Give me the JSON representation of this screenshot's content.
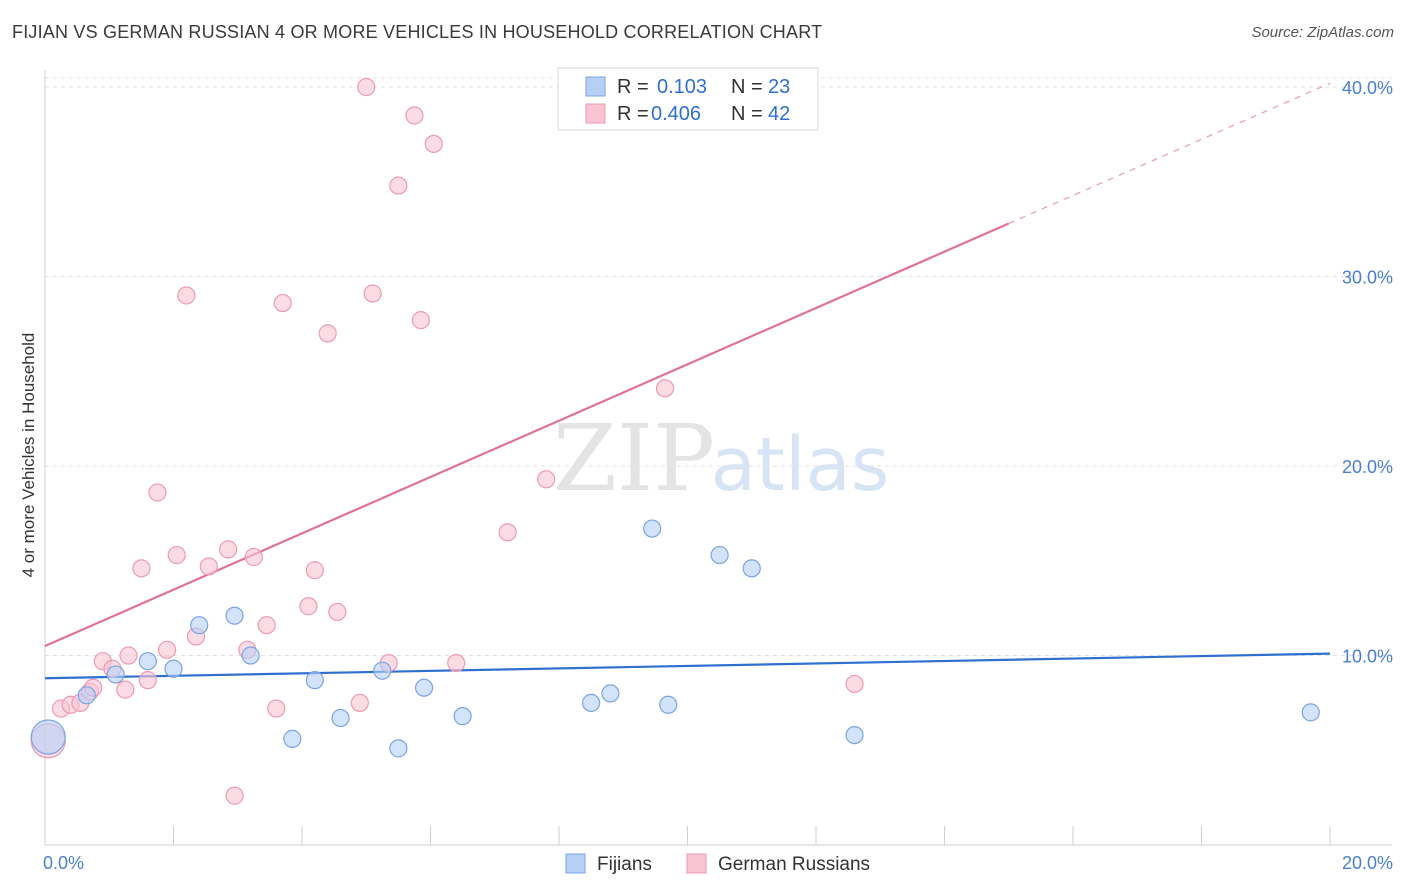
{
  "chart_data": {
    "type": "scatter",
    "title": "FIJIAN VS GERMAN RUSSIAN 4 OR MORE VEHICLES IN HOUSEHOLD CORRELATION CHART",
    "source": "Source: ZipAtlas.com",
    "ylabel": "4 or more Vehicles in Household",
    "xlim": [
      0,
      20
    ],
    "ylim": [
      0,
      40.9
    ],
    "x_tick_labels": [
      "0.0%",
      "20.0%"
    ],
    "y_ticks": [
      10,
      20,
      30,
      40
    ],
    "y_tick_labels": [
      "10.0%",
      "20.0%",
      "30.0%",
      "40.0%"
    ],
    "watermark": [
      "ZIP",
      "atlas"
    ],
    "colors": {
      "fijians_fill": "#b6d0f5",
      "fijians_stroke": "#7aa4e2",
      "fijians_line": "#2f6fd0",
      "german_fill": "#f8c4d4",
      "german_stroke": "#ec9ab4",
      "german_line": "#e0709a",
      "accent_text": "#2f6fd0"
    },
    "legend": {
      "entries": [
        {
          "r_label": "R =",
          "r_value": "0.103",
          "n_label": "N =",
          "n_value": "23"
        },
        {
          "r_label": "R =",
          "r_value": "0.406",
          "n_label": "N =",
          "n_value": "42"
        }
      ]
    },
    "series": [
      {
        "name": "Fijians",
        "points": [
          [
            0.05,
            5.7
          ],
          [
            0.65,
            7.9
          ],
          [
            1.1,
            9.0
          ],
          [
            1.6,
            9.7
          ],
          [
            2.0,
            9.3
          ],
          [
            2.4,
            11.6
          ],
          [
            2.95,
            12.1
          ],
          [
            3.2,
            10.0
          ],
          [
            3.85,
            5.6
          ],
          [
            4.2,
            8.7
          ],
          [
            4.6,
            6.7
          ],
          [
            5.25,
            9.2
          ],
          [
            5.5,
            5.1
          ],
          [
            5.9,
            8.3
          ],
          [
            6.5,
            6.8
          ],
          [
            8.5,
            7.5
          ],
          [
            8.8,
            8.0
          ],
          [
            9.45,
            16.7
          ],
          [
            9.7,
            7.4
          ],
          [
            10.5,
            15.3
          ],
          [
            11.0,
            14.6
          ],
          [
            12.6,
            5.8
          ],
          [
            19.7,
            7.0
          ]
        ],
        "trend": {
          "x0": 0,
          "y0": 8.8,
          "x1": 20,
          "y1": 10.1
        }
      },
      {
        "name": "German Russians",
        "points": [
          [
            0.05,
            5.5
          ],
          [
            0.25,
            7.2
          ],
          [
            0.4,
            7.4
          ],
          [
            0.55,
            7.5
          ],
          [
            0.7,
            8.1
          ],
          [
            0.75,
            8.3
          ],
          [
            0.9,
            9.7
          ],
          [
            1.05,
            9.3
          ],
          [
            1.25,
            8.2
          ],
          [
            1.3,
            10.0
          ],
          [
            1.5,
            14.6
          ],
          [
            1.6,
            8.7
          ],
          [
            1.75,
            18.6
          ],
          [
            1.9,
            10.3
          ],
          [
            2.05,
            15.3
          ],
          [
            2.2,
            29.0
          ],
          [
            2.35,
            11.0
          ],
          [
            2.55,
            14.7
          ],
          [
            2.85,
            15.6
          ],
          [
            2.95,
            2.6
          ],
          [
            3.15,
            10.3
          ],
          [
            3.25,
            15.2
          ],
          [
            3.45,
            11.6
          ],
          [
            3.6,
            7.2
          ],
          [
            3.7,
            28.6
          ],
          [
            4.1,
            12.6
          ],
          [
            4.2,
            14.5
          ],
          [
            4.4,
            27.0
          ],
          [
            4.55,
            12.3
          ],
          [
            4.9,
            7.5
          ],
          [
            5.0,
            40.0
          ],
          [
            5.1,
            29.1
          ],
          [
            5.35,
            9.6
          ],
          [
            5.5,
            34.8
          ],
          [
            5.75,
            38.5
          ],
          [
            5.85,
            27.7
          ],
          [
            6.05,
            37.0
          ],
          [
            6.4,
            9.6
          ],
          [
            7.2,
            16.5
          ],
          [
            7.8,
            19.3
          ],
          [
            9.65,
            24.1
          ],
          [
            12.6,
            8.5
          ]
        ],
        "trend": {
          "x0": 0,
          "y0": 10.5,
          "x1": 15.0,
          "y1": 32.8,
          "dash_to_x": 20,
          "dash_to_y": 40.2
        }
      }
    ]
  }
}
